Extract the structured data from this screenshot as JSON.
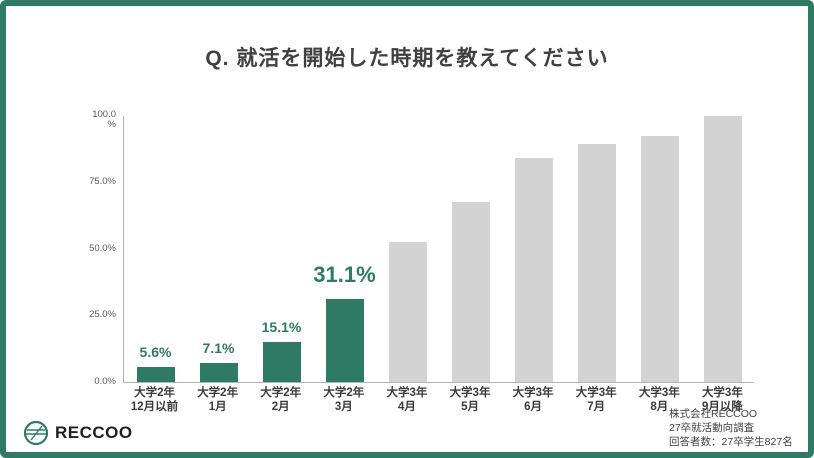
{
  "title": "Q. 就活を開始した時期を教えてください",
  "chart_data": {
    "type": "bar",
    "title": "Q. 就活を開始した時期を教えてください",
    "xlabel": "",
    "ylabel": "%",
    "ylim": [
      0,
      100
    ],
    "grid": false,
    "legend": false,
    "categories": [
      "大学2年\n12月以前",
      "大学2年\n1月",
      "大学2年\n2月",
      "大学2年\n3月",
      "大学3年\n4月",
      "大学3年\n5月",
      "大学3年\n6月",
      "大学3年\n7月",
      "大学3年\n8月",
      "大学3年\n9月以降"
    ],
    "values": [
      5.6,
      7.1,
      15.1,
      31.1,
      52.6,
      67.7,
      84.3,
      89.5,
      92.6,
      100.0
    ],
    "bar_labels": [
      "5.6%",
      "7.1%",
      "15.1%",
      "31.1%",
      "",
      "",
      "",
      "",
      "",
      ""
    ],
    "emphasized_label_index": 3,
    "highlight_count": 4,
    "colors": {
      "highlight": "#2F7A64",
      "muted": "#D3D3D3"
    },
    "y_ticks": [
      "100.0\n%",
      "75.0%",
      "50.0%",
      "25.0%",
      "0.0%"
    ],
    "y_tick_values": [
      100,
      75,
      50,
      25,
      0
    ]
  },
  "footer": {
    "logo_text": "RECCOO",
    "source_lines": [
      "株式会社RECCOO",
      "27卒就活動向調査",
      "回答者数：27卒学生827名"
    ]
  },
  "colors": {
    "frame_border": "#2F7A64",
    "background": "#FFFFFF",
    "title_text": "#404040",
    "axis_line": "#B3B3B3",
    "tick_text": "#595959",
    "category_text": "#3A3A3A",
    "source_text": "#404040"
  }
}
